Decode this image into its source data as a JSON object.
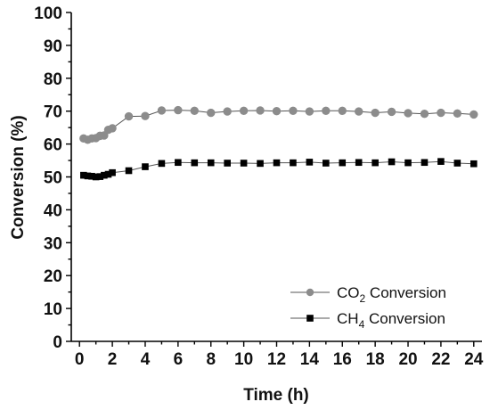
{
  "chart_data": {
    "type": "line",
    "xlabel": "Time (h)",
    "ylabel": "Conversion (%)",
    "xlim": [
      -0.5,
      24.5
    ],
    "ylim": [
      0,
      100
    ],
    "xticks": [
      0,
      2,
      4,
      6,
      8,
      10,
      12,
      14,
      16,
      18,
      20,
      22,
      24
    ],
    "yticks": [
      0,
      10,
      20,
      30,
      40,
      50,
      60,
      70,
      80,
      90,
      100
    ],
    "grid": false,
    "legend_position": "bottom-right",
    "series": [
      {
        "name": "CO2 Conversion",
        "legend_main": "CO",
        "legend_sub": "2",
        "legend_tail": " Conversion",
        "marker": "circle",
        "color": "#8c8c8c",
        "x": [
          0.25,
          0.5,
          0.75,
          1.0,
          1.25,
          1.5,
          1.75,
          2,
          3,
          4,
          5,
          6,
          7,
          8,
          9,
          10,
          11,
          12,
          13,
          14,
          15,
          16,
          17,
          18,
          19,
          20,
          21,
          22,
          23,
          24
        ],
        "y": [
          61.7,
          61.3,
          61.7,
          61.8,
          62.5,
          62.6,
          64.3,
          64.8,
          68.4,
          68.5,
          70.2,
          70.3,
          70.1,
          69.5,
          69.9,
          70.1,
          70.2,
          70.0,
          70.1,
          69.9,
          70.1,
          70.1,
          69.9,
          69.5,
          69.8,
          69.4,
          69.2,
          69.5,
          69.3,
          69.0
        ]
      },
      {
        "name": "CH4 Conversion",
        "legend_main": "CH",
        "legend_sub": "4",
        "legend_tail": " Conversion",
        "marker": "square",
        "color": "#000000",
        "x": [
          0.25,
          0.5,
          0.75,
          1.0,
          1.25,
          1.5,
          1.75,
          2,
          3,
          4,
          5,
          6,
          7,
          8,
          9,
          10,
          11,
          12,
          13,
          14,
          15,
          16,
          17,
          18,
          19,
          20,
          21,
          22,
          23,
          24
        ],
        "y": [
          50.5,
          50.3,
          50.2,
          50.0,
          50.1,
          50.5,
          50.8,
          51.3,
          51.9,
          53.1,
          54.1,
          54.4,
          54.3,
          54.3,
          54.2,
          54.2,
          54.1,
          54.3,
          54.3,
          54.5,
          54.2,
          54.3,
          54.4,
          54.3,
          54.6,
          54.3,
          54.4,
          54.7,
          54.2,
          54.0
        ]
      }
    ]
  }
}
